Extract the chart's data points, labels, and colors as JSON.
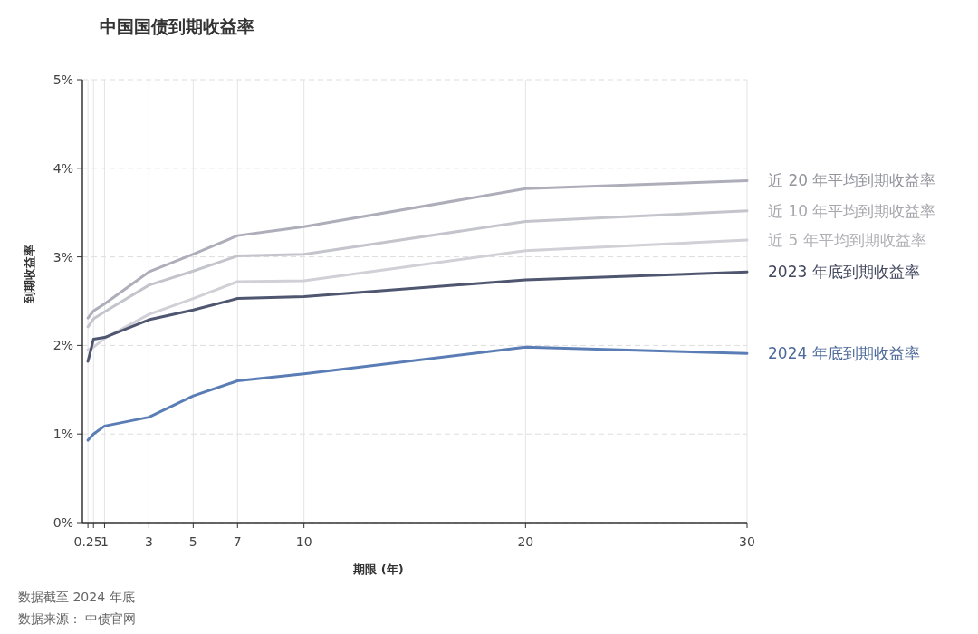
{
  "chart_data": {
    "type": "line",
    "title": "中国国债到期收益率",
    "xlabel": "期限 (年)",
    "ylabel": "到期收益率",
    "x": [
      0.25,
      0.5,
      1,
      3,
      5,
      7,
      10,
      20,
      30
    ],
    "series": [
      {
        "name": "近 20 年平均到期收益率",
        "color": "#aeaeba",
        "values": [
          2.31,
          2.39,
          2.47,
          2.83,
          3.03,
          3.24,
          3.34,
          3.77,
          3.86
        ]
      },
      {
        "name": "近 10 年平均到期收益率",
        "color": "#c4c4cc",
        "values": [
          2.21,
          2.3,
          2.38,
          2.68,
          2.84,
          3.01,
          3.03,
          3.4,
          3.52
        ]
      },
      {
        "name": "近 5 年平均到期收益率",
        "color": "#d0d0d6",
        "values": [
          1.95,
          1.98,
          2.08,
          2.35,
          2.53,
          2.72,
          2.73,
          3.07,
          3.19
        ]
      },
      {
        "name": "2023 年底到期收益率",
        "color": "#4f5670",
        "values": [
          1.82,
          2.07,
          2.09,
          2.29,
          2.4,
          2.53,
          2.55,
          2.74,
          2.83
        ]
      },
      {
        "name": "2024 年底到期收益率",
        "color": "#5b7db5",
        "values": [
          0.93,
          1.0,
          1.09,
          1.19,
          1.43,
          1.6,
          1.68,
          1.98,
          1.91
        ]
      }
    ],
    "xlim": [
      0,
      30
    ],
    "xticks": [
      {
        "value": 0.25,
        "label": "0.25"
      },
      {
        "value": 0.5,
        "label": null
      },
      1,
      3,
      5,
      7,
      10,
      20,
      30
    ],
    "ylim": [
      0,
      5
    ],
    "yticks": [
      {
        "value": 0,
        "label": "0%"
      },
      {
        "value": 1,
        "label": "1%"
      },
      {
        "value": 2,
        "label": "2%"
      },
      {
        "value": 3,
        "label": "3%"
      },
      {
        "value": 4,
        "label": "4%"
      },
      {
        "value": 5,
        "label": "5%"
      }
    ],
    "grid": true,
    "legend": false,
    "marker": "none",
    "line_style": "solid",
    "annotations": [
      "数据截至 2024 年底",
      "数据来源： 中债官网"
    ]
  }
}
